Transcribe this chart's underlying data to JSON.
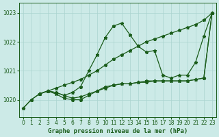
{
  "title": "Graphe pression niveau de la mer (hPa)",
  "bg_color": "#cceae7",
  "grid_color": "#aad4d0",
  "line_color": "#1a5c1a",
  "xlim": [
    -0.5,
    23.5
  ],
  "ylim": [
    1019.4,
    1023.35
  ],
  "yticks": [
    1020,
    1021,
    1022,
    1023
  ],
  "xticks": [
    0,
    1,
    2,
    3,
    4,
    5,
    6,
    7,
    8,
    9,
    10,
    11,
    12,
    13,
    14,
    15,
    16,
    17,
    18,
    19,
    20,
    21,
    22,
    23
  ],
  "series": [
    {
      "x": [
        0,
        1,
        2,
        3,
        4,
        5,
        6,
        7,
        8,
        9,
        10,
        11,
        12,
        13,
        14,
        15,
        16,
        17,
        18,
        19,
        20,
        21,
        22,
        23
      ],
      "y": [
        1019.7,
        1020.0,
        1020.2,
        1020.3,
        1020.25,
        1020.15,
        1020.25,
        1020.45,
        1021.0,
        1021.55,
        1022.15,
        1022.55,
        1022.65,
        1022.25,
        1021.85,
        1021.65,
        1021.7,
        1020.85,
        1020.75,
        1020.85,
        1020.85,
        1021.3,
        1022.2,
        1023.0
      ]
    },
    {
      "x": [
        2,
        3,
        4,
        5,
        6,
        7,
        8,
        9,
        10,
        11,
        12,
        13,
        14,
        15,
        16,
        17,
        18,
        19,
        20,
        21,
        22,
        23
      ],
      "y": [
        1020.2,
        1020.3,
        1020.4,
        1020.5,
        1020.6,
        1020.7,
        1020.85,
        1021.0,
        1021.2,
        1021.4,
        1021.55,
        1021.7,
        1021.85,
        1022.0,
        1022.1,
        1022.2,
        1022.3,
        1022.4,
        1022.5,
        1022.6,
        1022.75,
        1023.0
      ]
    },
    {
      "x": [
        0,
        1,
        2,
        3,
        4,
        5,
        6,
        7,
        8,
        9,
        10,
        11,
        12,
        13,
        14,
        15,
        16,
        17,
        18,
        19,
        20,
        21,
        22,
        23
      ],
      "y": [
        1019.7,
        1020.0,
        1020.2,
        1020.3,
        1020.25,
        1020.15,
        1020.05,
        1020.1,
        1020.2,
        1020.3,
        1020.4,
        1020.5,
        1020.55,
        1020.55,
        1020.6,
        1020.65,
        1020.65,
        1020.65,
        1020.65,
        1020.65,
        1020.65,
        1020.7,
        1020.75,
        1023.0
      ]
    },
    {
      "x": [
        2,
        3,
        4,
        5,
        6,
        7,
        8,
        9,
        10,
        11,
        12,
        13,
        14,
        15,
        16,
        17,
        18,
        19,
        20,
        21,
        22,
        23
      ],
      "y": [
        1020.2,
        1020.3,
        1020.2,
        1020.05,
        1020.0,
        1020.0,
        1020.15,
        1020.3,
        1020.45,
        1020.5,
        1020.55,
        1020.55,
        1020.6,
        1020.6,
        1020.65,
        1020.65,
        1020.65,
        1020.65,
        1020.65,
        1020.7,
        1020.75,
        1023.0
      ]
    }
  ]
}
